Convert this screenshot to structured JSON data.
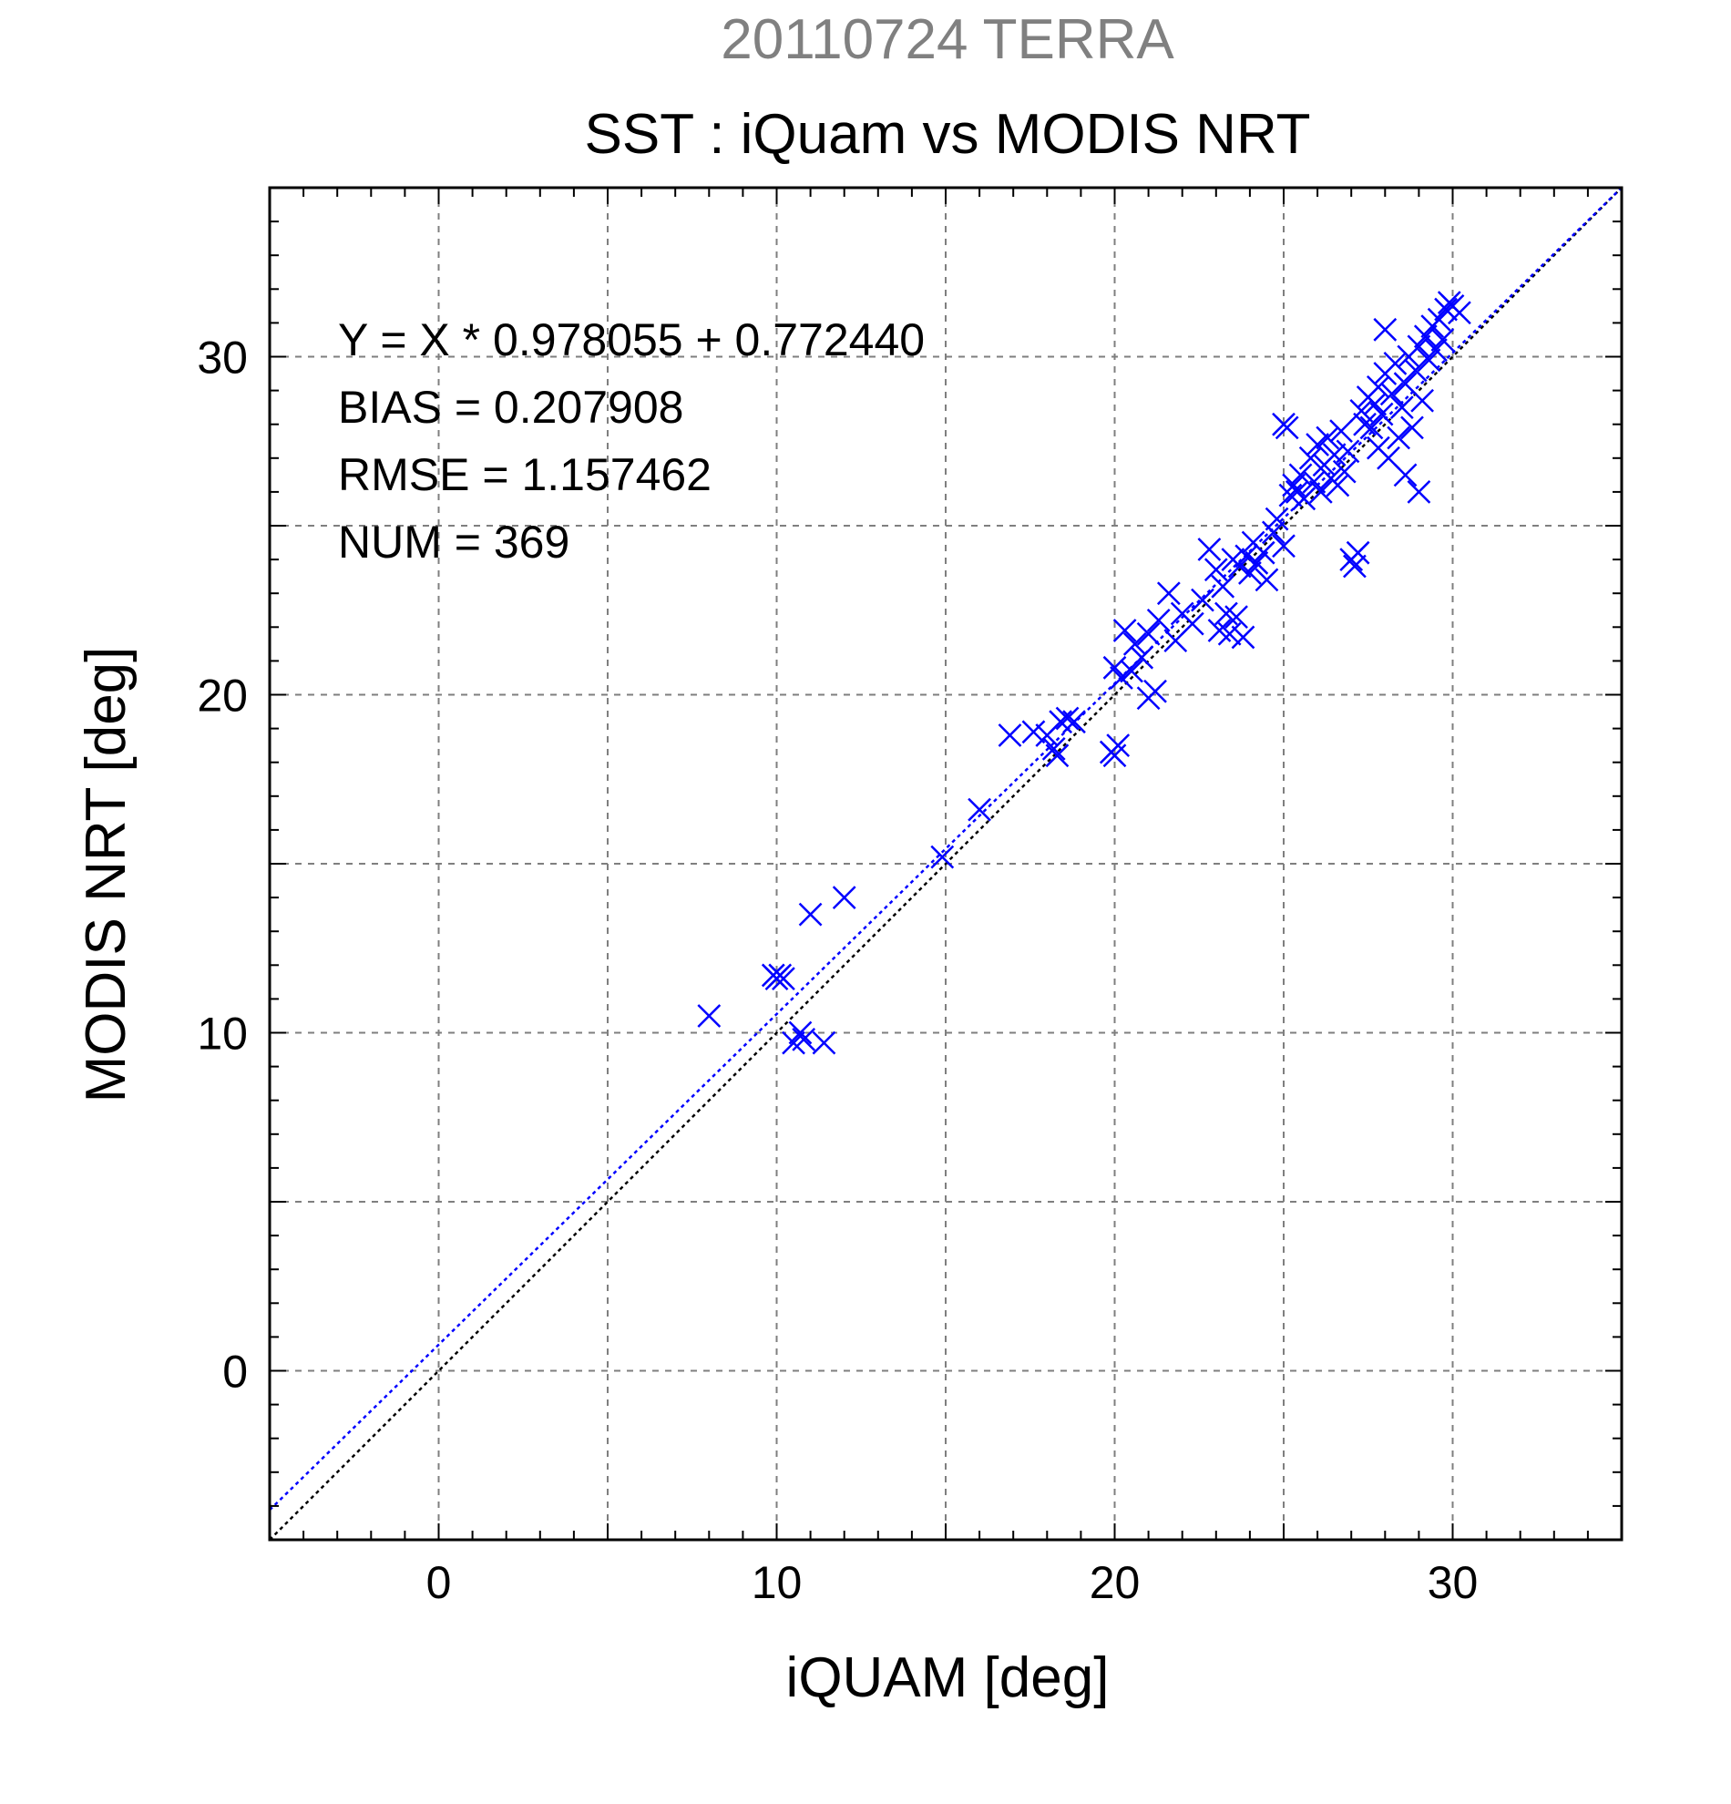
{
  "chart_data": {
    "type": "scatter",
    "title": "SST : iQuam vs MODIS NRT",
    "subtitle": "20110724 TERRA",
    "xlabel": "iQUAM [deg]",
    "ylabel": "MODIS NRT [deg]",
    "xlim": [
      -5,
      35
    ],
    "ylim": [
      -5,
      35
    ],
    "xticks": [
      0,
      10,
      20,
      30
    ],
    "yticks": [
      0,
      10,
      20,
      30
    ],
    "xtick_labels": [
      "0",
      "10",
      "20",
      "30"
    ],
    "ytick_labels": [
      "0",
      "10",
      "20",
      "30"
    ],
    "grid": true,
    "grid_step": 5,
    "minor_tick_step": 1,
    "stats": {
      "fit_line": "Y = X * 0.978055 + 0.772440",
      "bias": "BIAS = 0.207908",
      "rmse": "RMSE = 1.157462",
      "num": "NUM = 369"
    },
    "fit": {
      "slope": 0.978055,
      "intercept": 0.77244,
      "color": "#0000ff"
    },
    "identity_line": {
      "color": "#000000"
    },
    "marker": "x",
    "marker_color": "#0000ff",
    "subtitle_color": "#808080",
    "points": [
      [
        8.0,
        10.5
      ],
      [
        9.9,
        11.7
      ],
      [
        10.0,
        11.6
      ],
      [
        10.1,
        11.7
      ],
      [
        10.2,
        11.6
      ],
      [
        10.5,
        9.7
      ],
      [
        10.7,
        10.0
      ],
      [
        10.8,
        9.8
      ],
      [
        11.0,
        13.5
      ],
      [
        11.4,
        9.7
      ],
      [
        12.0,
        14.0
      ],
      [
        14.9,
        15.2
      ],
      [
        16.0,
        16.6
      ],
      [
        16.9,
        18.8
      ],
      [
        17.6,
        18.9
      ],
      [
        18.0,
        18.8
      ],
      [
        18.2,
        18.4
      ],
      [
        18.3,
        18.2
      ],
      [
        18.4,
        19.2
      ],
      [
        18.6,
        19.3
      ],
      [
        18.8,
        19.2
      ],
      [
        19.9,
        18.3
      ],
      [
        20.0,
        18.2
      ],
      [
        20.1,
        18.5
      ],
      [
        20.0,
        20.8
      ],
      [
        20.2,
        20.5
      ],
      [
        20.3,
        21.9
      ],
      [
        20.5,
        20.7
      ],
      [
        20.6,
        21.5
      ],
      [
        20.8,
        21.1
      ],
      [
        21.0,
        21.8
      ],
      [
        21.0,
        19.9
      ],
      [
        21.2,
        20.1
      ],
      [
        21.3,
        22.2
      ],
      [
        21.6,
        23.0
      ],
      [
        21.8,
        21.6
      ],
      [
        22.0,
        22.4
      ],
      [
        22.3,
        22.1
      ],
      [
        22.6,
        22.8
      ],
      [
        22.8,
        24.3
      ],
      [
        23.0,
        23.7
      ],
      [
        23.1,
        21.9
      ],
      [
        23.2,
        23.2
      ],
      [
        23.3,
        22.4
      ],
      [
        23.4,
        21.8
      ],
      [
        23.5,
        24.0
      ],
      [
        23.6,
        22.3
      ],
      [
        23.7,
        23.8
      ],
      [
        23.8,
        21.7
      ],
      [
        23.9,
        24.1
      ],
      [
        24.0,
        23.6
      ],
      [
        24.1,
        24.5
      ],
      [
        24.2,
        23.9
      ],
      [
        24.4,
        24.2
      ],
      [
        24.5,
        23.4
      ],
      [
        24.7,
        24.8
      ],
      [
        24.8,
        25.2
      ],
      [
        25.0,
        24.4
      ],
      [
        25.0,
        28.0
      ],
      [
        25.1,
        27.9
      ],
      [
        25.2,
        25.9
      ],
      [
        25.3,
        26.2
      ],
      [
        25.4,
        26.0
      ],
      [
        25.5,
        26.5
      ],
      [
        25.6,
        25.8
      ],
      [
        25.8,
        27.0
      ],
      [
        25.9,
        26.3
      ],
      [
        26.0,
        27.4
      ],
      [
        26.1,
        26.0
      ],
      [
        26.2,
        26.8
      ],
      [
        26.3,
        27.6
      ],
      [
        26.4,
        26.4
      ],
      [
        26.5,
        27.1
      ],
      [
        26.6,
        26.2
      ],
      [
        26.7,
        27.8
      ],
      [
        26.8,
        26.6
      ],
      [
        26.9,
        27.2
      ],
      [
        27.0,
        24.0
      ],
      [
        27.1,
        23.8
      ],
      [
        27.2,
        24.2
      ],
      [
        27.3,
        28.4
      ],
      [
        27.4,
        28.0
      ],
      [
        27.5,
        28.8
      ],
      [
        27.6,
        27.9
      ],
      [
        27.7,
        28.6
      ],
      [
        27.8,
        29.1
      ],
      [
        27.8,
        27.3
      ],
      [
        27.9,
        28.3
      ],
      [
        28.0,
        29.5
      ],
      [
        28.0,
        30.8
      ],
      [
        28.1,
        27.0
      ],
      [
        28.2,
        28.9
      ],
      [
        28.3,
        29.8
      ],
      [
        28.4,
        27.6
      ],
      [
        28.5,
        28.5
      ],
      [
        28.6,
        29.2
      ],
      [
        28.6,
        26.5
      ],
      [
        28.7,
        30.0
      ],
      [
        28.8,
        27.9
      ],
      [
        28.9,
        29.6
      ],
      [
        29.0,
        30.3
      ],
      [
        29.0,
        26.0
      ],
      [
        29.1,
        28.7
      ],
      [
        29.2,
        30.6
      ],
      [
        29.3,
        29.9
      ],
      [
        29.4,
        30.9
      ],
      [
        29.5,
        30.2
      ],
      [
        29.6,
        31.1
      ],
      [
        29.7,
        30.5
      ],
      [
        29.8,
        31.4
      ],
      [
        29.9,
        31.6
      ],
      [
        30.0,
        31.5
      ],
      [
        30.2,
        31.3
      ]
    ]
  }
}
